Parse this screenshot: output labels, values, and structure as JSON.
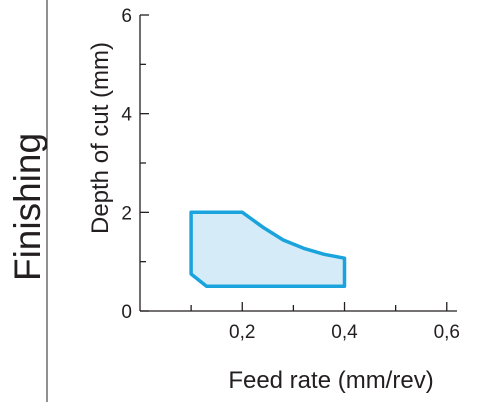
{
  "section_label": "Finishing",
  "chart_data": {
    "type": "area",
    "xlabel": "Feed rate (mm/rev)",
    "ylabel": "Depth of cut (mm)",
    "xlim": [
      0,
      0.62
    ],
    "ylim": [
      0,
      6
    ],
    "x_ticks": [
      {
        "value": 0.2,
        "label": "0,2"
      },
      {
        "value": 0.4,
        "label": "0,4"
      },
      {
        "value": 0.6,
        "label": "0,6"
      }
    ],
    "y_ticks": [
      {
        "value": 0,
        "label": "0"
      },
      {
        "value": 2,
        "label": "2"
      },
      {
        "value": 4,
        "label": "4"
      },
      {
        "value": 6,
        "label": "6"
      }
    ],
    "minor_tick_step": 1,
    "grid": false,
    "region": {
      "fill_color": "#d5ecf8",
      "stroke_color": "#1aa3dc",
      "points": [
        {
          "x": 0.1,
          "y": 2.0
        },
        {
          "x": 0.2,
          "y": 2.0
        },
        {
          "x": 0.24,
          "y": 1.7
        },
        {
          "x": 0.28,
          "y": 1.44
        },
        {
          "x": 0.32,
          "y": 1.27
        },
        {
          "x": 0.36,
          "y": 1.15
        },
        {
          "x": 0.4,
          "y": 1.07
        },
        {
          "x": 0.4,
          "y": 0.5
        },
        {
          "x": 0.13,
          "y": 0.5
        },
        {
          "x": 0.1,
          "y": 0.75
        }
      ]
    }
  },
  "colors": {
    "axis": "#231f20",
    "divider": "#231f20"
  }
}
